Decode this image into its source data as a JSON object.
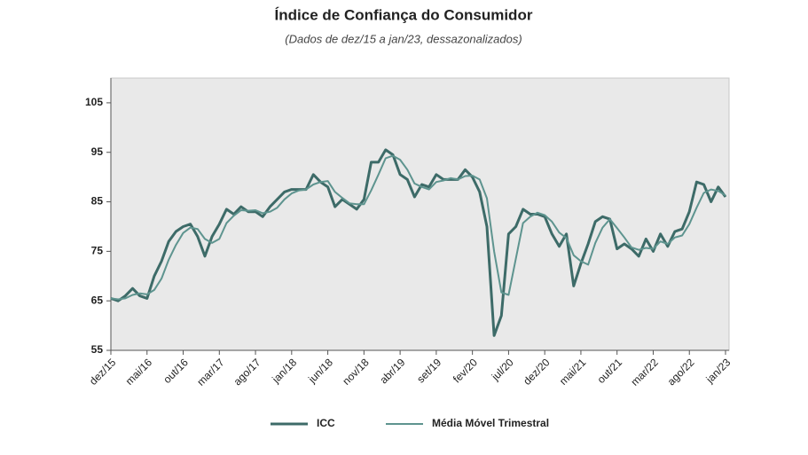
{
  "chart_data": {
    "type": "line",
    "title": "Índice de Confiança do Consumidor",
    "subtitle": "(Dados de dez/15 a jan/23, dessazonalizados)",
    "categories": [
      "dez/15",
      null,
      null,
      null,
      null,
      "mai/16",
      null,
      null,
      null,
      null,
      "out/16",
      null,
      null,
      null,
      null,
      "mar/17",
      null,
      null,
      null,
      null,
      "ago/17",
      null,
      null,
      null,
      null,
      "jan/18",
      null,
      null,
      null,
      null,
      "jun/18",
      null,
      null,
      null,
      null,
      "nov/18",
      null,
      null,
      null,
      null,
      "abr/19",
      null,
      null,
      null,
      null,
      "set/19",
      null,
      null,
      null,
      null,
      "fev/20",
      null,
      null,
      null,
      null,
      "jul/20",
      null,
      null,
      null,
      null,
      "dez/20",
      null,
      null,
      null,
      null,
      "mai/21",
      null,
      null,
      null,
      null,
      "out/21",
      null,
      null,
      null,
      null,
      "mar/22",
      null,
      null,
      null,
      null,
      "ago/22",
      null,
      null,
      null,
      null,
      "jan/23"
    ],
    "series": [
      {
        "name": "ICC",
        "color": "#3d6b68",
        "values": [
          65.5,
          65,
          66,
          67.5,
          66,
          65.5,
          70,
          73,
          77,
          79,
          80,
          80.5,
          78,
          74,
          78,
          80.5,
          83.5,
          82.5,
          84,
          83,
          83,
          82,
          84,
          85.5,
          87,
          87.5,
          87.5,
          87.5,
          90.5,
          89,
          88,
          84,
          85.5,
          84.5,
          83.5,
          85.5,
          93,
          93,
          95.5,
          94.5,
          90.5,
          89.5,
          86,
          88.5,
          88,
          90.5,
          89.5,
          89.5,
          89.5,
          91.5,
          90,
          87,
          80,
          58,
          62,
          78.5,
          80,
          83.5,
          82.5,
          82.5,
          82,
          78.5,
          76,
          78.5,
          68,
          72.5,
          76.5,
          81,
          82,
          81.5,
          75.5,
          76.5,
          75.5,
          74,
          77.5,
          75,
          78.5,
          76,
          79,
          79.5,
          83,
          89,
          88.5,
          85,
          88,
          86
        ]
      },
      {
        "name": "Média Móvel Trimestral",
        "color": "#5e948f",
        "values": [
          65.5,
          65.3,
          65.5,
          66.2,
          66.5,
          66.3,
          67.2,
          69.5,
          73.3,
          76.3,
          78.7,
          79.8,
          79.5,
          77.5,
          76.7,
          77.5,
          80.7,
          82.2,
          83.3,
          83.2,
          83.3,
          82.7,
          83,
          83.8,
          85.5,
          86.7,
          87.3,
          87.5,
          88.5,
          89,
          89.2,
          87,
          85.8,
          84.7,
          84.5,
          84.5,
          87.3,
          90.5,
          93.8,
          94.3,
          93.5,
          91.5,
          88.7,
          88,
          87.5,
          89,
          89.3,
          89.8,
          89.5,
          90.2,
          90.3,
          89.5,
          85.7,
          75,
          66.7,
          66.2,
          73.5,
          80.7,
          82,
          82.8,
          82.3,
          81,
          78.8,
          77.7,
          74.2,
          73,
          72.3,
          76.7,
          79.8,
          81.5,
          79.7,
          77.8,
          75.8,
          75.3,
          75.7,
          75.5,
          77,
          76.5,
          77.8,
          78.2,
          80.5,
          83.8,
          86.8,
          87.5,
          87.2,
          86.3
        ]
      }
    ],
    "ylim": [
      55,
      110
    ],
    "yticks": [
      55,
      65,
      75,
      85,
      95,
      105
    ],
    "grid": false
  }
}
